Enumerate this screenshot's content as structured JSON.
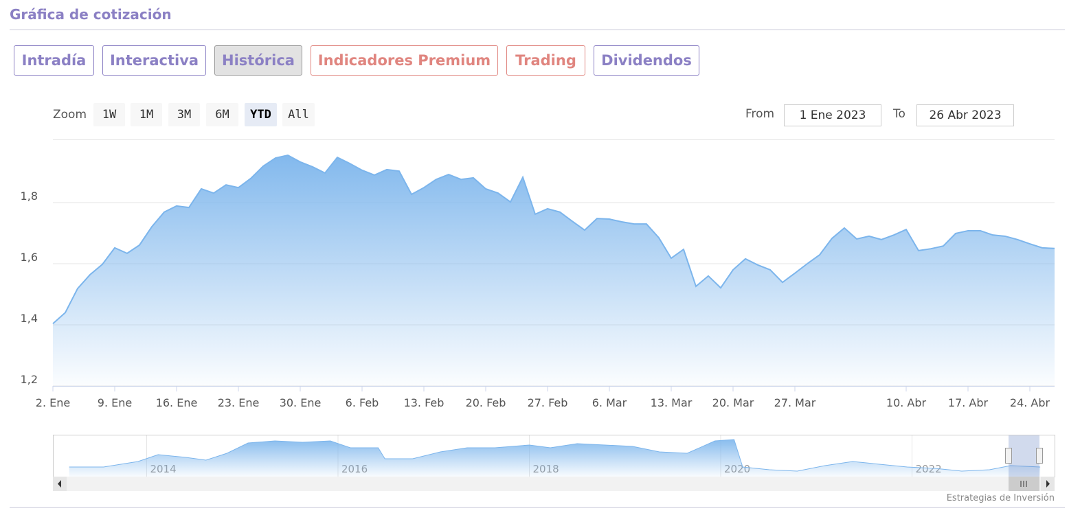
{
  "header": {
    "title": "Gráfica de cotización"
  },
  "tabs": {
    "active": "Histórica",
    "items": [
      {
        "label": "Intradía",
        "color": "#8b80c4"
      },
      {
        "label": "Interactiva",
        "color": "#8b80c4"
      },
      {
        "label": "Histórica",
        "color": "#8b80c4"
      },
      {
        "label": "Indicadores Premium",
        "color": "#e0857f"
      },
      {
        "label": "Trading",
        "color": "#e0857f"
      },
      {
        "label": "Dividendos",
        "color": "#8b80c4"
      }
    ]
  },
  "zoom": {
    "label": "Zoom",
    "selected": "YTD",
    "buttons": [
      "1W",
      "1M",
      "3M",
      "6M",
      "YTD",
      "All"
    ]
  },
  "range": {
    "from_label": "From",
    "from": "1 Ene 2023",
    "to_label": "To",
    "to": "26 Abr 2023"
  },
  "chart_data": {
    "type": "area",
    "color": "#7cb5ec",
    "grid": true,
    "categories": [
      "2. Ene",
      null,
      null,
      null,
      null,
      "9. Ene",
      null,
      null,
      null,
      null,
      "16. Ene",
      null,
      null,
      null,
      null,
      "23. Ene",
      null,
      null,
      null,
      null,
      "30. Ene",
      null,
      null,
      null,
      null,
      "6. Feb",
      null,
      null,
      null,
      null,
      "13. Feb",
      null,
      null,
      null,
      null,
      "20. Feb",
      null,
      null,
      null,
      null,
      "27. Feb",
      null,
      null,
      null,
      null,
      "6. Mar",
      null,
      null,
      null,
      null,
      "13. Mar",
      null,
      null,
      null,
      null,
      "20. Mar",
      null,
      null,
      null,
      null,
      "27. Mar",
      null,
      null,
      null,
      null,
      null,
      null,
      null,
      null,
      "10. Abr",
      null,
      null,
      null,
      null,
      "17. Abr",
      null,
      null,
      null,
      null,
      "24. Abr",
      null,
      null
    ],
    "values": [
      1.404,
      1.44,
      1.519,
      1.564,
      1.598,
      1.652,
      1.634,
      1.661,
      1.721,
      1.769,
      1.789,
      1.784,
      1.845,
      1.831,
      1.858,
      1.849,
      1.879,
      1.919,
      1.946,
      1.955,
      1.933,
      1.917,
      1.897,
      1.948,
      1.928,
      1.906,
      1.89,
      1.908,
      1.903,
      1.827,
      1.849,
      1.876,
      1.892,
      1.876,
      1.881,
      1.845,
      1.831,
      1.802,
      1.883,
      1.762,
      1.78,
      1.769,
      1.739,
      1.71,
      1.748,
      1.746,
      1.737,
      1.73,
      1.73,
      1.685,
      1.618,
      1.647,
      1.526,
      1.56,
      1.521,
      1.58,
      1.616,
      1.596,
      1.58,
      1.539,
      1.569,
      1.6,
      1.629,
      1.683,
      1.717,
      1.681,
      1.69,
      1.679,
      1.694,
      1.712,
      1.643,
      1.649,
      1.658,
      1.699,
      1.708,
      1.708,
      1.694,
      1.69,
      1.679,
      1.665,
      1.652,
      1.65
    ],
    "ylim": [
      1.2,
      2.0
    ],
    "yticks": [
      {
        "value": 1.2,
        "label": "1,2"
      },
      {
        "value": 1.4,
        "label": "1,4"
      },
      {
        "value": 1.6,
        "label": "1,6"
      },
      {
        "value": 1.8,
        "label": "1,8"
      }
    ]
  },
  "navigator": {
    "type": "area",
    "color": "#7cb5ec",
    "x": [
      2013.19,
      2013.55,
      2013.91,
      2014.12,
      2014.41,
      2014.62,
      2014.84,
      2015.06,
      2015.34,
      2015.63,
      2015.92,
      2016.13,
      2016.42,
      2016.49,
      2016.78,
      2017.07,
      2017.35,
      2017.64,
      2018.0,
      2018.22,
      2018.5,
      2018.79,
      2019.08,
      2019.36,
      2019.65,
      2019.94,
      2020.14,
      2020.23,
      2020.51,
      2020.8,
      2021.09,
      2021.38,
      2021.66,
      2021.95,
      2022.24,
      2022.52,
      2022.81,
      2023.03,
      2023.34
    ],
    "values": [
      1.9,
      1.9,
      2.3,
      2.8,
      2.6,
      2.4,
      2.9,
      3.65,
      3.8,
      3.7,
      3.8,
      3.3,
      3.3,
      2.5,
      2.5,
      3.0,
      3.3,
      3.3,
      3.5,
      3.3,
      3.6,
      3.5,
      3.4,
      3.0,
      2.9,
      3.8,
      3.9,
      1.9,
      1.7,
      1.6,
      2.0,
      2.3,
      2.1,
      1.9,
      1.8,
      1.6,
      1.7,
      2.0,
      1.9
    ],
    "xlim": [
      2013.02,
      2023.49
    ],
    "ylim": [
      1.2,
      4.2
    ],
    "xticks": [
      2014,
      2016,
      2018,
      2020,
      2022
    ]
  },
  "credit": "Estrategias de Inversión"
}
